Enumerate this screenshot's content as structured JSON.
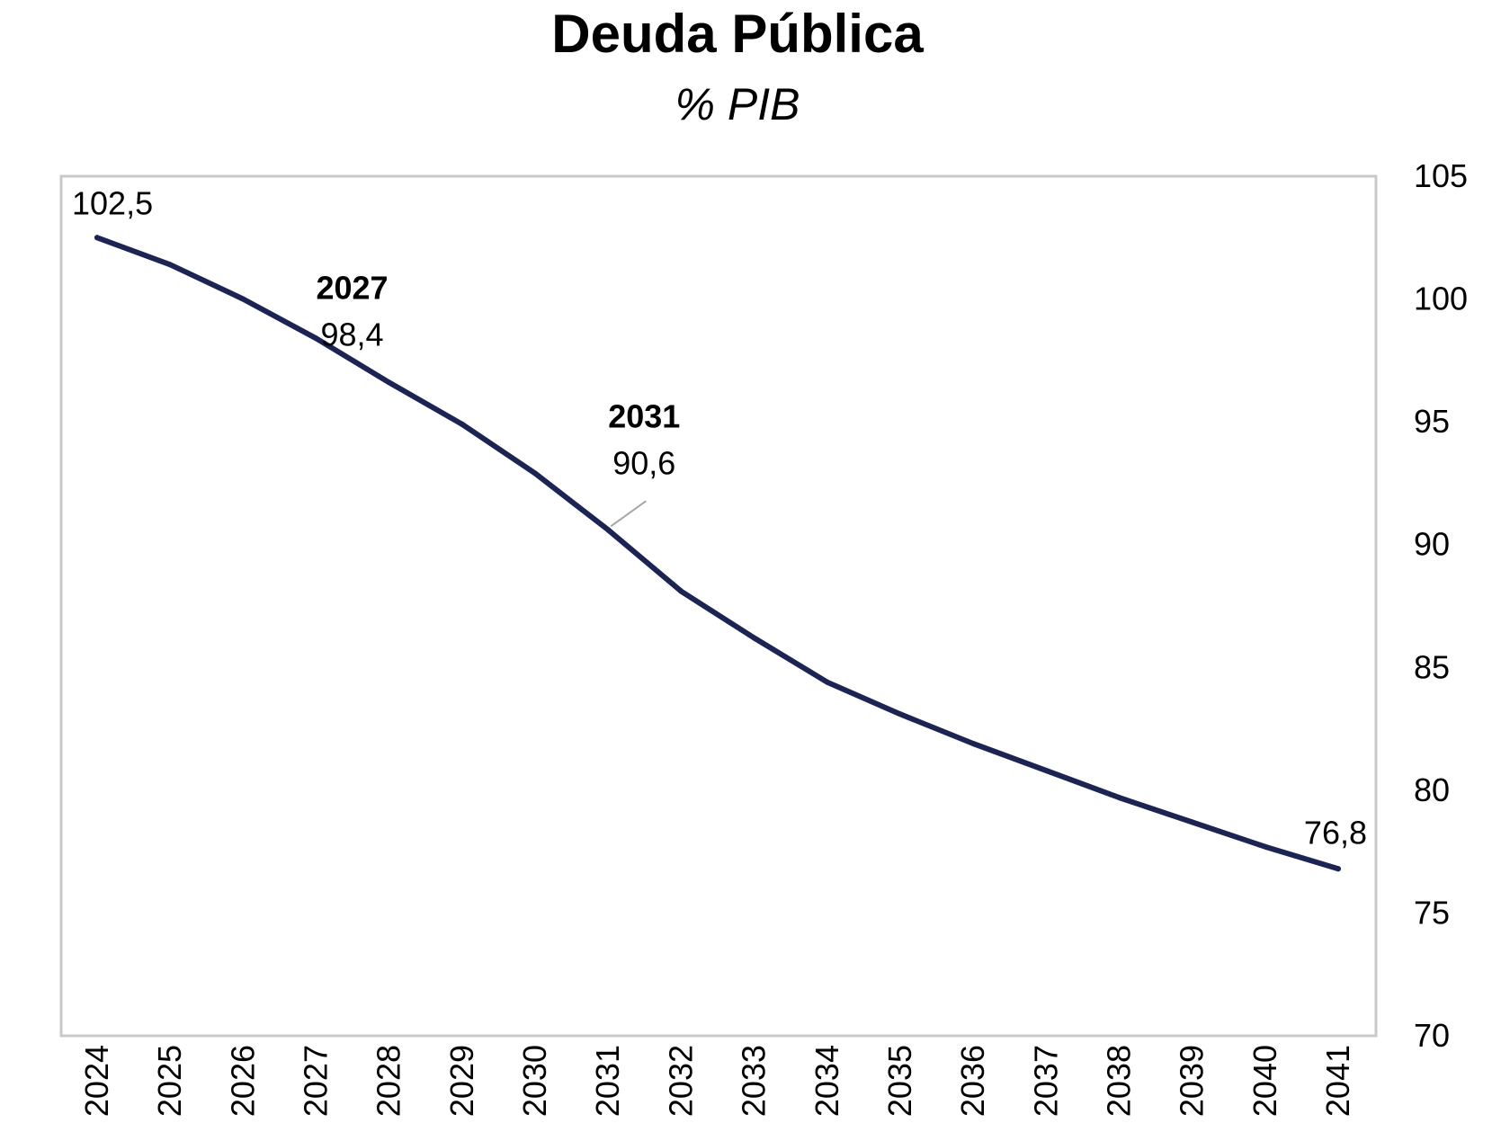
{
  "chart_data": {
    "type": "line",
    "title": "Deuda Pública",
    "subtitle": "% PIB",
    "xlabel": "",
    "ylabel": "",
    "y_axis_position": "right",
    "ylim": [
      70,
      105
    ],
    "yticks": [
      70,
      75,
      80,
      85,
      90,
      95,
      100,
      105
    ],
    "grid": false,
    "line_color": "#1b2453",
    "categories": [
      "2024",
      "2025",
      "2026",
      "2027",
      "2028",
      "2029",
      "2030",
      "2031",
      "2032",
      "2033",
      "2034",
      "2035",
      "2036",
      "2037",
      "2038",
      "2039",
      "2040",
      "2041"
    ],
    "series": [
      {
        "name": "Deuda Pública",
        "values": [
          102.5,
          101.4,
          100.0,
          98.4,
          96.6,
          94.9,
          92.9,
          90.6,
          88.1,
          86.2,
          84.4,
          83.1,
          81.9,
          80.8,
          79.7,
          78.7,
          77.7,
          76.8
        ]
      }
    ],
    "annotations": [
      {
        "x": "2024",
        "label": "102,5"
      },
      {
        "x": "2027",
        "year_label": "2027",
        "label": "98,4"
      },
      {
        "x": "2031",
        "year_label": "2031",
        "label": "90,6",
        "leader_line": true
      },
      {
        "x": "2041",
        "label": "76,8"
      }
    ]
  }
}
